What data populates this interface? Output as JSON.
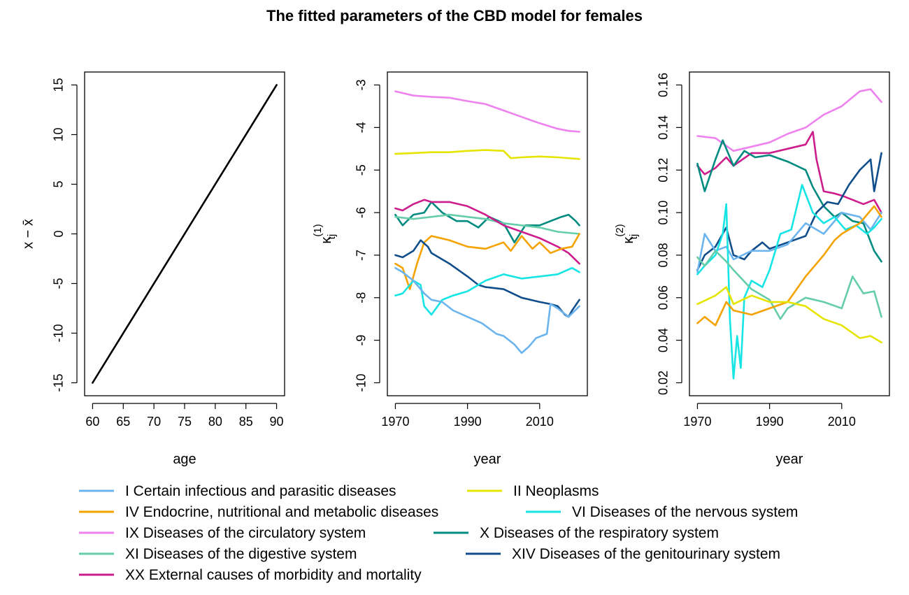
{
  "title": "The fitted parameters of the CBD model for females",
  "colors": {
    "I": "#6CB4EE",
    "II": "#E5E500",
    "IV": "#F4A300",
    "VI": "#17E5E5",
    "IX": "#EE82EE",
    "X": "#008B80",
    "XI": "#66CDAA",
    "XIV": "#104E8B",
    "XX": "#CD1C8B"
  },
  "legend": [
    {
      "key": "I",
      "label": "I Certain infectious and parasitic diseases"
    },
    {
      "key": "II",
      "label": "II Neoplasms"
    },
    {
      "key": "IV",
      "label": "IV Endocrine, nutritional and metabolic diseases"
    },
    {
      "key": "VI",
      "label": "VI Diseases of the nervous system"
    },
    {
      "key": "IX",
      "label": "IX Diseases of the circulatory system"
    },
    {
      "key": "X",
      "label": "X Diseases of the respiratory system"
    },
    {
      "key": "XI",
      "label": "XI Diseases of the digestive system"
    },
    {
      "key": "XIV",
      "label": "XIV Diseases of the genitourinary system"
    },
    {
      "key": "XX",
      "label": "XX External causes of morbidity and mortality"
    }
  ],
  "chart_data": [
    {
      "type": "line",
      "xlabel": "age",
      "ylabel": "x − x̄",
      "xlim": [
        60,
        90
      ],
      "ylim": [
        -15,
        15
      ],
      "xticks": [
        60,
        65,
        70,
        75,
        80,
        85,
        90
      ],
      "yticks": [
        -15,
        -10,
        -5,
        0,
        5,
        10,
        15
      ],
      "series": [
        {
          "color": "#000000",
          "x": [
            60,
            90
          ],
          "y": [
            -15,
            15
          ]
        }
      ]
    },
    {
      "type": "line",
      "xlabel": "year",
      "ylabel": "κ(1) tj",
      "xlim": [
        1970,
        2021
      ],
      "ylim": [
        -10,
        -3
      ],
      "xticks": [
        1970,
        1990,
        2010
      ],
      "yticks": [
        -10,
        -9,
        -8,
        -7,
        -6,
        -5,
        -4,
        -3
      ],
      "series": [
        {
          "key": "IX",
          "x": [
            1970,
            1975,
            1980,
            1985,
            1990,
            1995,
            2000,
            2005,
            2010,
            2015,
            2018,
            2021
          ],
          "y": [
            -3.15,
            -3.25,
            -3.28,
            -3.3,
            -3.38,
            -3.45,
            -3.6,
            -3.75,
            -3.9,
            -4.03,
            -4.08,
            -4.1
          ]
        },
        {
          "key": "II",
          "x": [
            1970,
            1975,
            1980,
            1985,
            1990,
            1995,
            2000,
            2002,
            2005,
            2010,
            2015,
            2021
          ],
          "y": [
            -4.62,
            -4.6,
            -4.58,
            -4.58,
            -4.55,
            -4.53,
            -4.55,
            -4.72,
            -4.7,
            -4.68,
            -4.7,
            -4.74
          ]
        },
        {
          "key": "X",
          "x": [
            1970,
            1972,
            1975,
            1978,
            1980,
            1983,
            1987,
            1990,
            1993,
            1996,
            2000,
            2003,
            2006,
            2010,
            2013,
            2016,
            2018,
            2020,
            2021
          ],
          "y": [
            -6.05,
            -6.3,
            -6.05,
            -6.0,
            -5.75,
            -6.0,
            -6.2,
            -6.2,
            -6.35,
            -6.1,
            -6.25,
            -6.7,
            -6.3,
            -6.3,
            -6.2,
            -6.1,
            -6.05,
            -6.2,
            -6.3
          ]
        },
        {
          "key": "XI",
          "x": [
            1970,
            1975,
            1980,
            1985,
            1990,
            1995,
            2000,
            2005,
            2010,
            2015,
            2021
          ],
          "y": [
            -6.1,
            -6.15,
            -6.1,
            -6.05,
            -6.1,
            -6.15,
            -6.25,
            -6.3,
            -6.35,
            -6.45,
            -6.5
          ]
        },
        {
          "key": "XX",
          "x": [
            1970,
            1972,
            1975,
            1978,
            1980,
            1985,
            1990,
            1995,
            2000,
            2005,
            2010,
            2015,
            2018,
            2021
          ],
          "y": [
            -5.9,
            -5.95,
            -5.8,
            -5.7,
            -5.75,
            -5.75,
            -5.85,
            -6.05,
            -6.3,
            -6.45,
            -6.6,
            -6.8,
            -6.95,
            -7.2
          ]
        },
        {
          "key": "IV",
          "x": [
            1970,
            1972,
            1974,
            1976,
            1978,
            1980,
            1985,
            1990,
            1995,
            2000,
            2002,
            2005,
            2008,
            2010,
            2013,
            2016,
            2019,
            2021
          ],
          "y": [
            -7.2,
            -7.3,
            -7.8,
            -7.2,
            -6.7,
            -6.55,
            -6.65,
            -6.8,
            -6.85,
            -6.7,
            -6.9,
            -6.55,
            -6.85,
            -6.7,
            -6.95,
            -6.85,
            -6.8,
            -6.5
          ]
        },
        {
          "key": "XIV",
          "x": [
            1970,
            1972,
            1975,
            1977,
            1979,
            1980,
            1985,
            1990,
            1993,
            1995,
            2000,
            2005,
            2010,
            2013,
            2015,
            2017,
            2018,
            2019,
            2021
          ],
          "y": [
            -7.0,
            -7.05,
            -6.9,
            -6.65,
            -6.8,
            -6.95,
            -7.2,
            -7.5,
            -7.7,
            -7.75,
            -7.8,
            -8.0,
            -8.1,
            -8.15,
            -8.2,
            -8.4,
            -8.45,
            -8.3,
            -8.05
          ]
        },
        {
          "key": "VI",
          "x": [
            1970,
            1972,
            1975,
            1977,
            1978,
            1980,
            1983,
            1986,
            1990,
            1995,
            2000,
            2005,
            2010,
            2015,
            2019,
            2021
          ],
          "y": [
            -7.95,
            -7.9,
            -7.6,
            -7.7,
            -8.2,
            -8.4,
            -8.05,
            -7.95,
            -7.85,
            -7.6,
            -7.45,
            -7.55,
            -7.5,
            -7.45,
            -7.3,
            -7.4
          ]
        },
        {
          "key": "I",
          "x": [
            1970,
            1972,
            1975,
            1978,
            1980,
            1983,
            1986,
            1990,
            1994,
            1998,
            2000,
            2003,
            2005,
            2007,
            2009,
            2012,
            2013,
            2015,
            2018,
            2021
          ],
          "y": [
            -7.3,
            -7.4,
            -7.6,
            -7.9,
            -8.05,
            -8.1,
            -8.3,
            -8.45,
            -8.6,
            -8.85,
            -8.9,
            -9.1,
            -9.3,
            -9.15,
            -8.95,
            -8.85,
            -8.15,
            -8.25,
            -8.45,
            -8.2
          ]
        }
      ]
    },
    {
      "type": "line",
      "xlabel": "year",
      "ylabel": "κ(2) tj",
      "xlim": [
        1970,
        2021
      ],
      "ylim": [
        0.02,
        0.16
      ],
      "xticks": [
        1970,
        1990,
        2010
      ],
      "yticks": [
        0.02,
        0.04,
        0.06,
        0.08,
        0.1,
        0.12,
        0.14,
        0.16
      ],
      "series": [
        {
          "key": "IX",
          "x": [
            1970,
            1975,
            1980,
            1985,
            1990,
            1995,
            2000,
            2005,
            2010,
            2015,
            2018,
            2021
          ],
          "y": [
            0.136,
            0.135,
            0.129,
            0.131,
            0.133,
            0.137,
            0.14,
            0.146,
            0.15,
            0.157,
            0.158,
            0.152
          ]
        },
        {
          "key": "XX",
          "x": [
            1970,
            1972,
            1975,
            1978,
            1980,
            1985,
            1990,
            1995,
            2000,
            2002,
            2003,
            2005,
            2008,
            2010,
            2013,
            2016,
            2019,
            2021
          ],
          "y": [
            0.122,
            0.118,
            0.121,
            0.126,
            0.122,
            0.128,
            0.128,
            0.13,
            0.132,
            0.138,
            0.125,
            0.11,
            0.109,
            0.108,
            0.106,
            0.104,
            0.106,
            0.1
          ]
        },
        {
          "key": "X",
          "x": [
            1970,
            1972,
            1975,
            1977,
            1980,
            1983,
            1986,
            1990,
            1995,
            2000,
            2002,
            2005,
            2008,
            2010,
            2013,
            2016,
            2019,
            2021
          ],
          "y": [
            0.123,
            0.11,
            0.125,
            0.134,
            0.122,
            0.129,
            0.126,
            0.127,
            0.124,
            0.12,
            0.112,
            0.103,
            0.098,
            0.1,
            0.096,
            0.095,
            0.082,
            0.077
          ]
        },
        {
          "key": "XIV",
          "x": [
            1970,
            1972,
            1975,
            1978,
            1980,
            1983,
            1985,
            1988,
            1990,
            1995,
            2000,
            2003,
            2006,
            2009,
            2012,
            2015,
            2018,
            2019,
            2021
          ],
          "y": [
            0.073,
            0.08,
            0.084,
            0.093,
            0.08,
            0.078,
            0.082,
            0.086,
            0.083,
            0.086,
            0.089,
            0.1,
            0.105,
            0.104,
            0.113,
            0.12,
            0.125,
            0.11,
            0.128
          ]
        },
        {
          "key": "I",
          "x": [
            1970,
            1972,
            1975,
            1978,
            1980,
            1985,
            1990,
            1995,
            2000,
            2005,
            2010,
            2015,
            2018,
            2021
          ],
          "y": [
            0.072,
            0.09,
            0.082,
            0.084,
            0.078,
            0.082,
            0.082,
            0.085,
            0.095,
            0.09,
            0.1,
            0.098,
            0.092,
            0.1
          ]
        },
        {
          "key": "VI",
          "x": [
            1970,
            1972,
            1975,
            1977,
            1978,
            1979,
            1980,
            1981,
            1982,
            1983,
            1985,
            1988,
            1990,
            1993,
            1996,
            1999,
            2002,
            2005,
            2008,
            2011,
            2014,
            2017,
            2019,
            2021
          ],
          "y": [
            0.071,
            0.075,
            0.08,
            0.09,
            0.104,
            0.05,
            0.022,
            0.042,
            0.027,
            0.06,
            0.068,
            0.065,
            0.073,
            0.09,
            0.092,
            0.113,
            0.1,
            0.095,
            0.098,
            0.092,
            0.094,
            0.09,
            0.093,
            0.097
          ]
        },
        {
          "key": "XI",
          "x": [
            1970,
            1972,
            1975,
            1978,
            1980,
            1985,
            1990,
            1993,
            1995,
            2000,
            2005,
            2010,
            2013,
            2016,
            2019,
            2021
          ],
          "y": [
            0.079,
            0.075,
            0.082,
            0.077,
            0.073,
            0.064,
            0.059,
            0.05,
            0.055,
            0.06,
            0.058,
            0.055,
            0.07,
            0.062,
            0.063,
            0.051
          ]
        },
        {
          "key": "IV",
          "x": [
            1970,
            1972,
            1975,
            1978,
            1980,
            1985,
            1990,
            1995,
            2000,
            2005,
            2008,
            2010,
            2015,
            2019,
            2021
          ],
          "y": [
            0.048,
            0.051,
            0.047,
            0.058,
            0.054,
            0.052,
            0.055,
            0.058,
            0.07,
            0.08,
            0.087,
            0.09,
            0.095,
            0.103,
            0.098
          ]
        },
        {
          "key": "II",
          "x": [
            1970,
            1975,
            1978,
            1980,
            1985,
            1990,
            1995,
            2000,
            2005,
            2010,
            2015,
            2018,
            2021
          ],
          "y": [
            0.057,
            0.061,
            0.065,
            0.057,
            0.061,
            0.058,
            0.058,
            0.056,
            0.05,
            0.047,
            0.041,
            0.042,
            0.039
          ]
        }
      ]
    }
  ]
}
